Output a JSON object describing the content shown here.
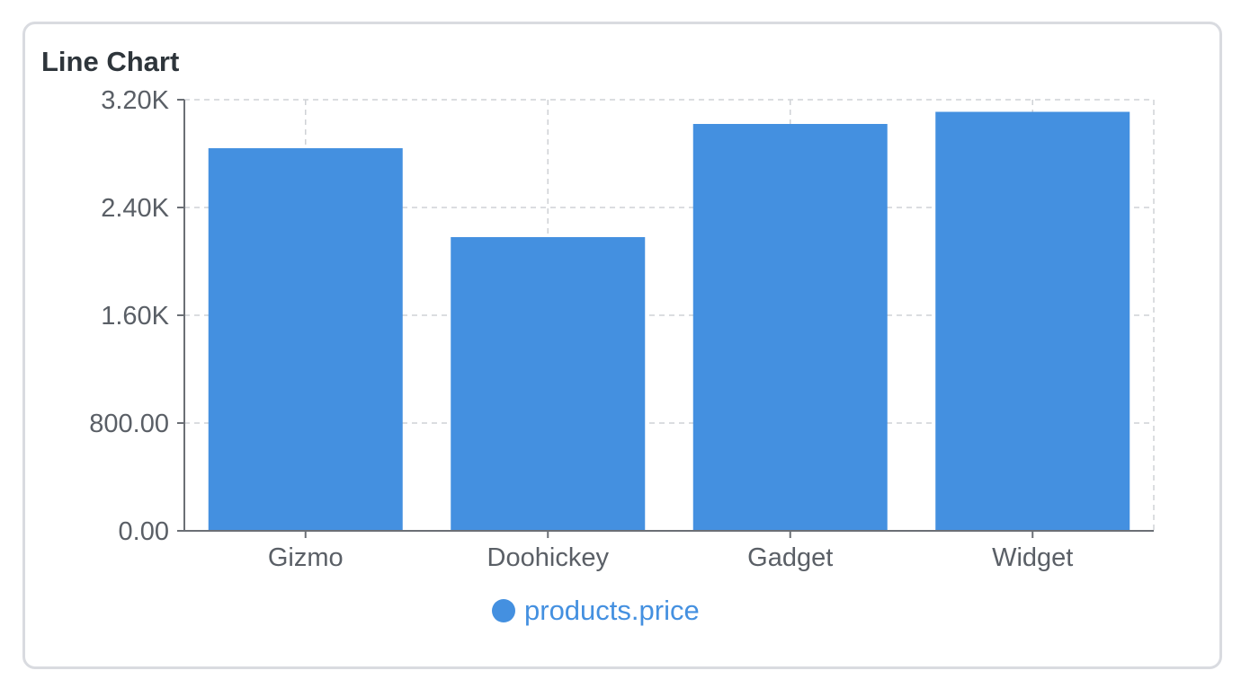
{
  "card": {
    "title": "Line Chart"
  },
  "colors": {
    "bar": "#4490e0",
    "grid": "#cfd2d6",
    "axis": "#6b6f75",
    "card_border": "#d9dbe0",
    "title": "#2e353b",
    "legend_text": "#4490e0"
  },
  "chart_data": {
    "type": "bar",
    "title": "",
    "xlabel": "",
    "ylabel": "",
    "categories": [
      "Gizmo",
      "Doohickey",
      "Gadget",
      "Widget"
    ],
    "series": [
      {
        "name": "products.price",
        "values": [
          2840,
          2180,
          3020,
          3110
        ]
      }
    ],
    "ylim": [
      0,
      3200
    ],
    "yticks": [
      0,
      800,
      1600,
      2400,
      3200
    ],
    "ytick_labels": [
      "0.00",
      "800.00",
      "1.60K",
      "2.40K",
      "3.20K"
    ],
    "grid": true,
    "grid_style": "dashed",
    "legend_position": "bottom-center"
  }
}
